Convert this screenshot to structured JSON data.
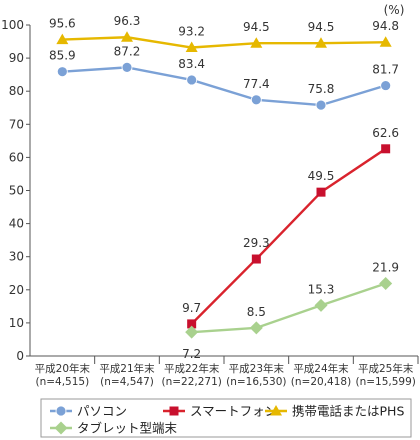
{
  "chart_data": {
    "type": "line",
    "unit_label": "(%)",
    "categories": [
      {
        "label": "平成20年末",
        "n": "(n=4,515)"
      },
      {
        "label": "平成21年末",
        "n": "(n=4,547)"
      },
      {
        "label": "平成22年末",
        "n": "(n=22,271)"
      },
      {
        "label": "平成23年末",
        "n": "(n=16,530)"
      },
      {
        "label": "平成24年末",
        "n": "(n=20,418)"
      },
      {
        "label": "平成25年末",
        "n": "(n=15,599)"
      }
    ],
    "ylim": [
      0,
      100
    ],
    "yticks": [
      0,
      10,
      20,
      30,
      40,
      50,
      60,
      70,
      80,
      90,
      100
    ],
    "grid": false,
    "legend_position": "bottom",
    "series": [
      {
        "name": "パソコン",
        "color": "#7BA1D6",
        "line_color": "#7BA1D6",
        "marker": "circle",
        "values": [
          85.9,
          87.2,
          83.4,
          77.4,
          75.8,
          81.7
        ],
        "labels": [
          "85.9",
          "87.2",
          "83.4",
          "77.4",
          "75.8",
          "81.7"
        ]
      },
      {
        "name": "スマートフォン",
        "color": "#C8102E",
        "line_color": "#D9232D",
        "marker": "square",
        "values": [
          null,
          null,
          9.7,
          29.3,
          49.5,
          62.6
        ],
        "labels": [
          null,
          null,
          "9.7",
          "29.3",
          "49.5",
          "62.6"
        ]
      },
      {
        "name": "携帯電話またはPHS",
        "color": "#E6B800",
        "line_color": "#E6B800",
        "marker": "triangle",
        "values": [
          95.6,
          96.3,
          93.2,
          94.5,
          94.5,
          94.8
        ],
        "labels": [
          "95.6",
          "96.3",
          "93.2",
          "94.5",
          "94.5",
          "94.8"
        ]
      },
      {
        "name": "タブレット型端末",
        "color": "#A9D18E",
        "line_color": "#A9D18E",
        "marker": "diamond",
        "values": [
          null,
          null,
          7.2,
          8.5,
          15.3,
          21.9
        ],
        "labels": [
          null,
          null,
          "7.2",
          "8.5",
          "15.3",
          "21.9"
        ]
      }
    ]
  }
}
